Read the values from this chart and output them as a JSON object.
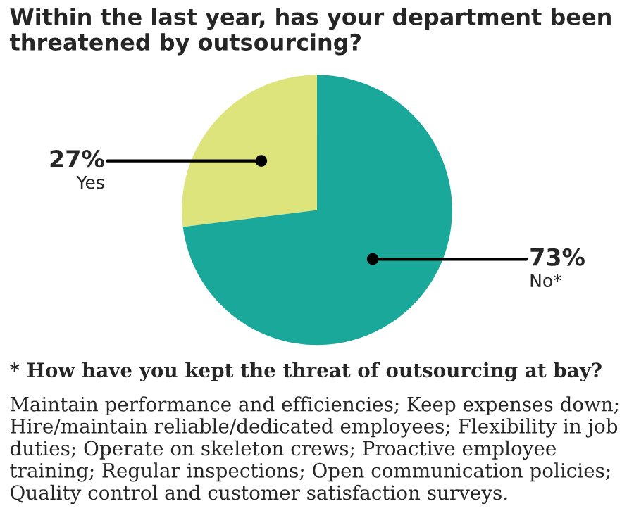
{
  "chart_data": {
    "type": "pie",
    "title": "Within the last year, has your department been threatened by outsourcing?",
    "categories": [
      "Yes",
      "No*"
    ],
    "values": [
      27,
      73
    ],
    "value_labels": [
      "27%",
      "73%"
    ],
    "colors": [
      "#dde47c",
      "#1aa89b"
    ],
    "annotations": [
      "* How have you kept the threat of outsourcing at bay?",
      "Maintain performance and efficiencies; Keep expenses down; Hire/maintain reliable/dedicated employees; Flexibility in job duties; Operate on skeleton crews; Proactive employee training; Regular inspections; Open communication policies; Quality control and customer satisfaction surveys."
    ]
  }
}
